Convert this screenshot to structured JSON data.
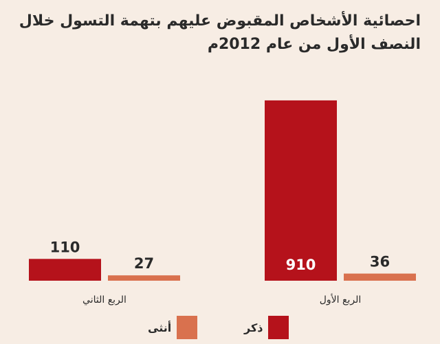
{
  "title_line1": "احصائية الأشخاص المقبوض عليهم بتهمة التسول خلال",
  "title_line2": "النصف الأول من عام 2012م",
  "colors": {
    "male": "#b5121b",
    "female": "#d9714e",
    "background": "#f7ede4"
  },
  "chart_data": {
    "type": "bar",
    "categories": [
      "الربع الثاني",
      "الربع الأول"
    ],
    "series": [
      {
        "name": "ذكر",
        "values": [
          110,
          910
        ]
      },
      {
        "name": "أنثى",
        "values": [
          27,
          36
        ]
      }
    ],
    "ylim": [
      0,
      1000
    ],
    "grid": false,
    "legend_position": "bottom"
  }
}
